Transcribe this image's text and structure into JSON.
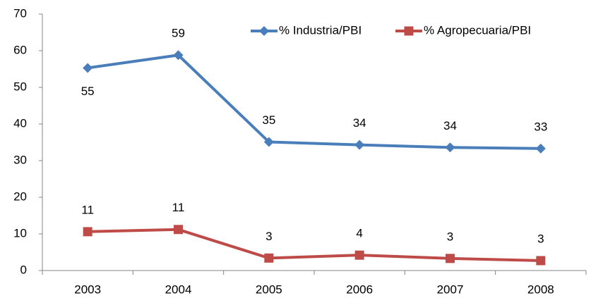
{
  "chart_data": {
    "type": "line",
    "categories": [
      "2003",
      "2004",
      "2005",
      "2006",
      "2007",
      "2008"
    ],
    "series": [
      {
        "name": "% Industria/PBI",
        "color": "#4a7ebb",
        "marker": "diamond",
        "values": [
          55.3,
          58.8,
          35.1,
          34.3,
          33.6,
          33.3
        ],
        "value_labels": [
          "55",
          "59",
          "35",
          "34",
          "34",
          "33"
        ]
      },
      {
        "name": "% Agropecuaria/PBI",
        "color": "#be4b48",
        "marker": "square",
        "values": [
          10.6,
          11.2,
          3.4,
          4.2,
          3.3,
          2.7
        ],
        "value_labels": [
          "11",
          "11",
          "3",
          "4",
          "3",
          "3"
        ]
      }
    ],
    "ylim": [
      0,
      70
    ],
    "yticks": [
      0,
      10,
      20,
      30,
      40,
      50,
      60,
      70
    ],
    "grid": false,
    "legend": "top"
  }
}
